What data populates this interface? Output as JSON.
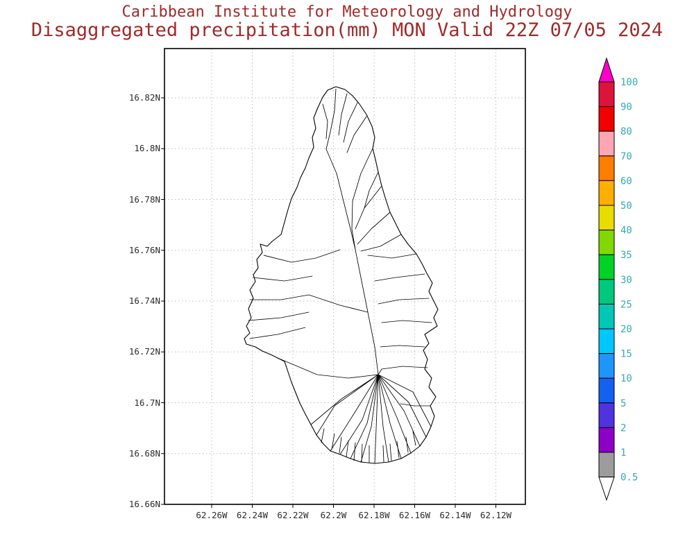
{
  "header": {
    "line1": "Caribbean Institute for Meteorology and Hydrology",
    "line2": "Disaggregated precipitation(mm) MON Valid 22Z 07/05 2024",
    "title_color": "#a12a2a"
  },
  "map": {
    "lat_ticks": [
      "16.82N",
      "16.8N",
      "16.78N",
      "16.76N",
      "16.74N",
      "16.72N",
      "16.7N",
      "16.68N",
      "16.66N"
    ],
    "lon_ticks": [
      "62.26W",
      "62.24W",
      "62.22W",
      "62.2W",
      "62.18W",
      "62.16W",
      "62.14W",
      "62.12W"
    ]
  },
  "colorbar": {
    "labels_top_to_bottom": [
      "100",
      "90",
      "80",
      "70",
      "60",
      "50",
      "40",
      "35",
      "30",
      "25",
      "20",
      "15",
      "10",
      "5",
      "2",
      "1",
      "0.5"
    ],
    "band_colors_top_to_bottom": [
      "#dc143c",
      "#f20000",
      "#ffa6b4",
      "#ff7d00",
      "#ffaf00",
      "#e8dc00",
      "#82d800",
      "#00d228",
      "#00c87d",
      "#00c8b4",
      "#00c8ff",
      "#1e96ff",
      "#1460f0",
      "#5032e1",
      "#8c00c8",
      "#9c9c9c"
    ],
    "arrow_top_color": "#ff00c8",
    "arrow_bottom_color": "#ffffff",
    "label_color": "#35aab4",
    "units": "mm"
  }
}
